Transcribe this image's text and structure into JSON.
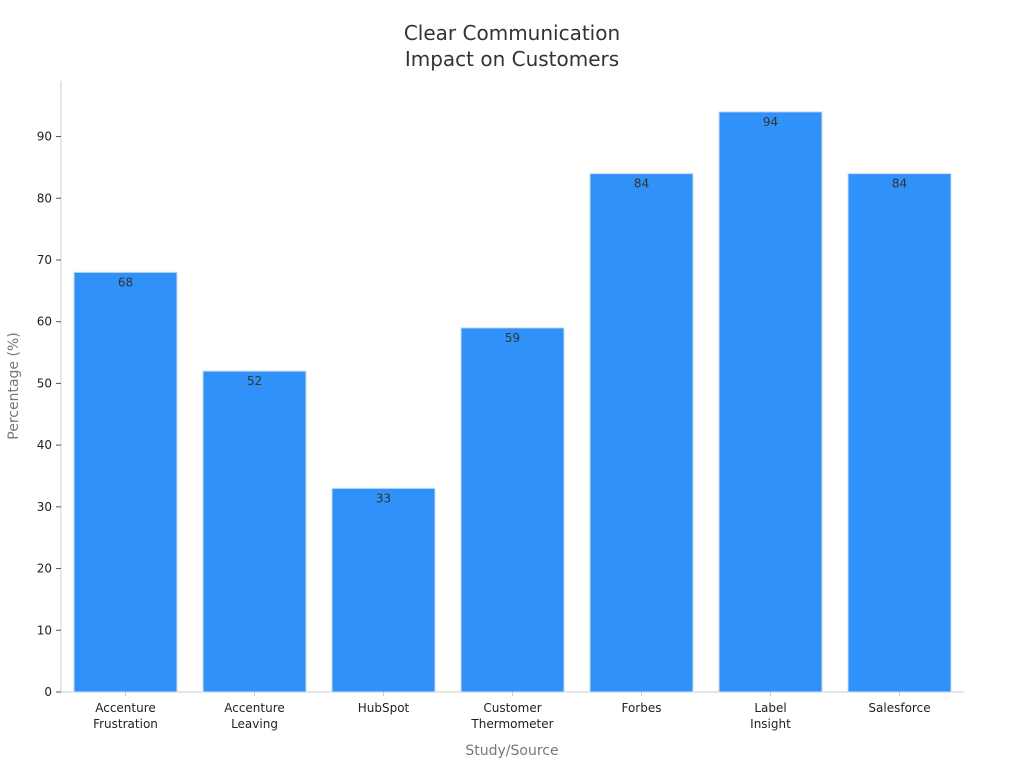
{
  "chart_data": {
    "type": "bar",
    "title_lines": [
      "Clear Communication",
      "Impact on Customers"
    ],
    "xlabel": "Study/Source",
    "ylabel": "Percentage (%)",
    "categories": [
      [
        "Accenture",
        "Frustration"
      ],
      [
        "Accenture",
        "Leaving"
      ],
      [
        "HubSpot"
      ],
      [
        "Customer",
        "Thermometer"
      ],
      [
        "Forbes"
      ],
      [
        "Label",
        "Insight"
      ],
      [
        "Salesforce"
      ]
    ],
    "values": [
      68,
      52,
      33,
      59,
      84,
      94,
      84
    ],
    "data_labels": [
      "68",
      "52",
      "33",
      "59",
      "84",
      "94",
      "84"
    ],
    "y_ticks": [
      0,
      10,
      20,
      30,
      40,
      50,
      60,
      70,
      80,
      90
    ],
    "y_tick_labels": [
      "0",
      "10",
      "20",
      "30",
      "40",
      "50",
      "60",
      "70",
      "80",
      "90"
    ],
    "ylim": [
      0,
      99
    ],
    "grid": false,
    "legend": "none",
    "colors": {
      "bar": "#3092f8",
      "bar_edge": "#c9def5",
      "axis": "#cccccc",
      "tick": "#555555"
    }
  }
}
